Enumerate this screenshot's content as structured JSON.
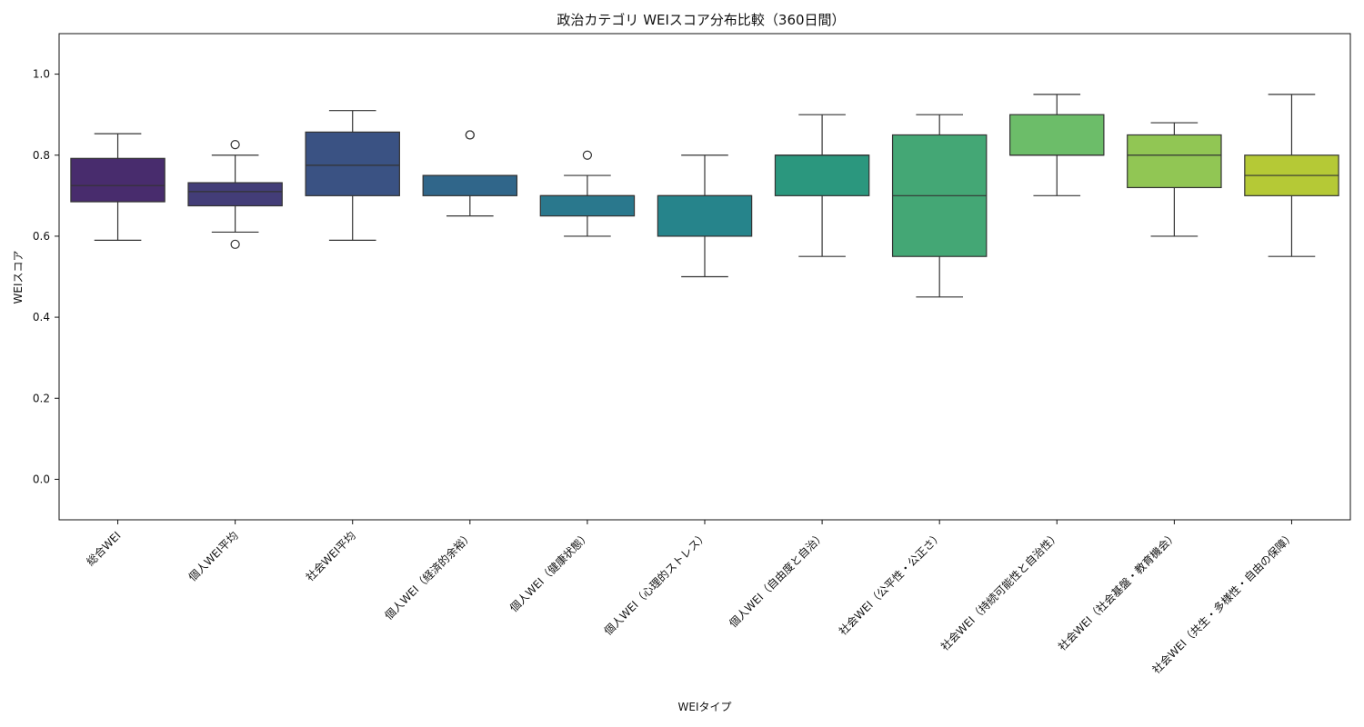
{
  "chart_data": {
    "type": "box",
    "title": "政治カテゴリ WEIスコア分布比較（360日間）",
    "xlabel": "WEIタイプ",
    "ylabel": "WEIスコア",
    "ylim": [
      -0.1,
      1.1
    ],
    "yticks": [
      "0.0",
      "0.2",
      "0.4",
      "0.6",
      "0.8",
      "1.0"
    ],
    "grid": false,
    "categories": [
      "総合WEI",
      "個人WEI平均",
      "社会WEI平均",
      "個人WEI（経済的余裕）",
      "個人WEI（健康状態）",
      "個人WEI（心理的ストレス）",
      "個人WEI（自由度と自治）",
      "社会WEI（公平性・公正さ）",
      "社会WEI（持続可能性と自治性）",
      "社会WEI（社会基盤・教育機会）",
      "社会WEI（共生・多様性・自由の保障）"
    ],
    "boxes": [
      {
        "min": 0.59,
        "q1": 0.685,
        "median": 0.725,
        "q3": 0.792,
        "max": 0.853,
        "outliers": [],
        "color": "#482c6d"
      },
      {
        "min": 0.61,
        "q1": 0.675,
        "median": 0.71,
        "q3": 0.732,
        "max": 0.8,
        "outliers": [
          0.826,
          0.58
        ],
        "color": "#433d78"
      },
      {
        "min": 0.59,
        "q1": 0.7,
        "median": 0.775,
        "q3": 0.857,
        "max": 0.91,
        "outliers": [],
        "color": "#3a5283"
      },
      {
        "min": 0.65,
        "q1": 0.7,
        "median": 0.75,
        "q3": 0.75,
        "max": 0.75,
        "outliers": [
          0.85,
          0.85
        ],
        "color": "#30668a"
      },
      {
        "min": 0.6,
        "q1": 0.65,
        "median": 0.7,
        "q3": 0.7,
        "max": 0.75,
        "outliers": [
          0.8
        ],
        "color": "#2a788d"
      },
      {
        "min": 0.5,
        "q1": 0.6,
        "median": 0.7,
        "q3": 0.7,
        "max": 0.8,
        "outliers": [],
        "color": "#26848b"
      },
      {
        "min": 0.55,
        "q1": 0.7,
        "median": 0.8,
        "q3": 0.8,
        "max": 0.9,
        "outliers": [],
        "color": "#2b977e"
      },
      {
        "min": 0.45,
        "q1": 0.55,
        "median": 0.7,
        "q3": 0.85,
        "max": 0.9,
        "outliers": [],
        "color": "#44a775"
      },
      {
        "min": 0.7,
        "q1": 0.8,
        "median": 0.8,
        "q3": 0.9,
        "max": 0.95,
        "outliers": [],
        "color": "#6cbd69"
      },
      {
        "min": 0.6,
        "q1": 0.72,
        "median": 0.8,
        "q3": 0.85,
        "max": 0.88,
        "outliers": [],
        "color": "#91c654"
      },
      {
        "min": 0.55,
        "q1": 0.7,
        "median": 0.75,
        "q3": 0.8,
        "max": 0.95,
        "outliers": [],
        "color": "#b5c936"
      }
    ]
  }
}
